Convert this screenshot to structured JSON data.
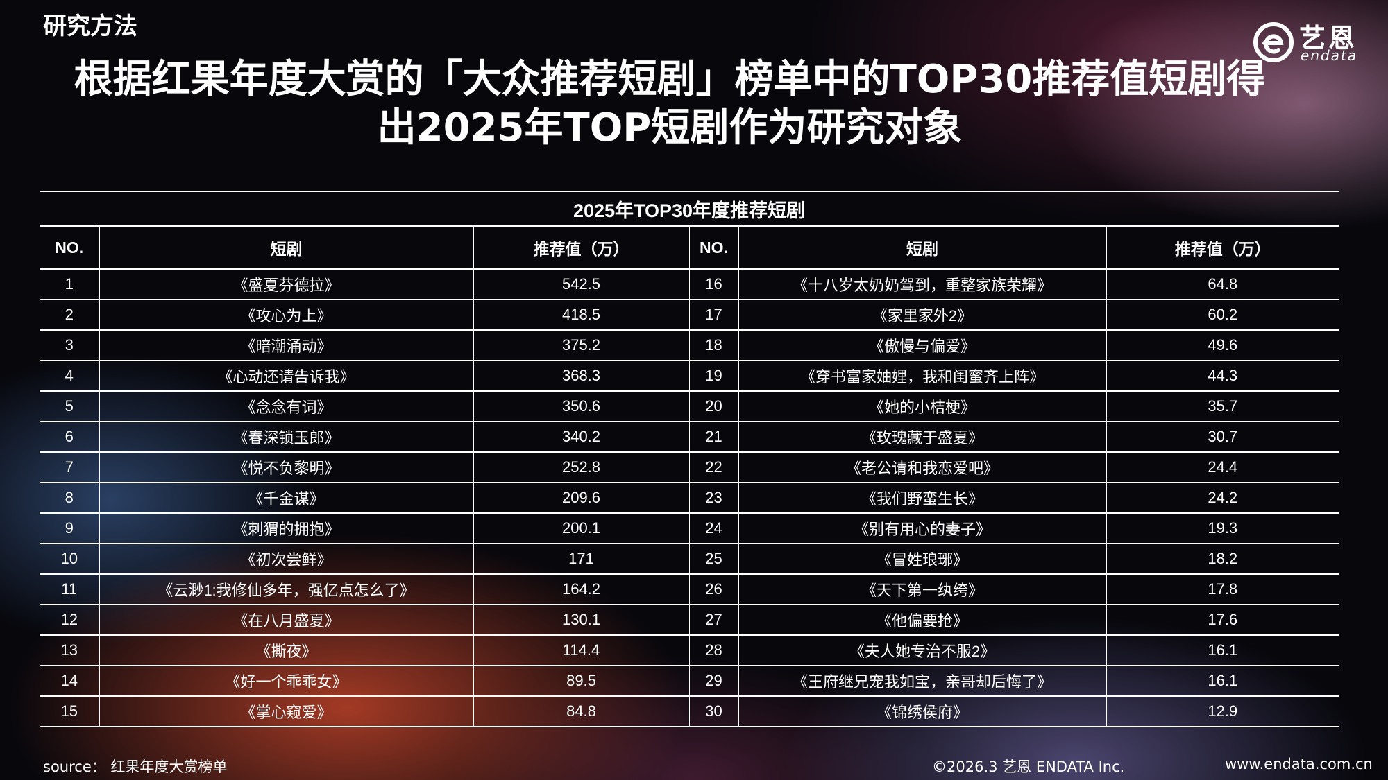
{
  "section_label": "研究方法",
  "logo": {
    "cn": "艺恩",
    "en": "endata"
  },
  "title_lines": [
    "根据红果年度大赏的「大众推荐短剧」榜单中的TOP30推荐值短剧得",
    "出2025年TOP短剧作为研究对象"
  ],
  "table": {
    "caption": "2025年TOP30年度推荐短剧",
    "headers": {
      "no": "NO.",
      "drama": "短剧",
      "value": "推荐值（万）"
    },
    "rows": [
      {
        "left": {
          "no": "1",
          "name": "《盛夏芬德拉》",
          "value": "542.5"
        },
        "right": {
          "no": "16",
          "name": "《十八岁太奶奶驾到，重整家族荣耀》",
          "value": "64.8"
        }
      },
      {
        "left": {
          "no": "2",
          "name": "《攻心为上》",
          "value": "418.5"
        },
        "right": {
          "no": "17",
          "name": "《家里家外2》",
          "value": "60.2"
        }
      },
      {
        "left": {
          "no": "3",
          "name": "《暗潮涌动》",
          "value": "375.2"
        },
        "right": {
          "no": "18",
          "name": "《傲慢与偏爱》",
          "value": "49.6"
        }
      },
      {
        "left": {
          "no": "4",
          "name": "《心动还请告诉我》",
          "value": "368.3"
        },
        "right": {
          "no": "19",
          "name": "《穿书富家妯娌，我和闺蜜齐上阵》",
          "value": "44.3"
        }
      },
      {
        "left": {
          "no": "5",
          "name": "《念念有词》",
          "value": "350.6"
        },
        "right": {
          "no": "20",
          "name": "《她的小桔梗》",
          "value": "35.7"
        }
      },
      {
        "left": {
          "no": "6",
          "name": "《春深锁玉郎》",
          "value": "340.2"
        },
        "right": {
          "no": "21",
          "name": "《玫瑰藏于盛夏》",
          "value": "30.7"
        }
      },
      {
        "left": {
          "no": "7",
          "name": "《悦不负黎明》",
          "value": "252.8"
        },
        "right": {
          "no": "22",
          "name": "《老公请和我恋爱吧》",
          "value": "24.4"
        }
      },
      {
        "left": {
          "no": "8",
          "name": "《千金谋》",
          "value": "209.6"
        },
        "right": {
          "no": "23",
          "name": "《我们野蛮生长》",
          "value": "24.2"
        }
      },
      {
        "left": {
          "no": "9",
          "name": "《刺猬的拥抱》",
          "value": "200.1"
        },
        "right": {
          "no": "24",
          "name": "《别有用心的妻子》",
          "value": "19.3"
        }
      },
      {
        "left": {
          "no": "10",
          "name": "《初次尝鲜》",
          "value": "171"
        },
        "right": {
          "no": "25",
          "name": "《冒姓琅琊》",
          "value": "18.2"
        }
      },
      {
        "left": {
          "no": "11",
          "name": "《云渺1:我修仙多年，强亿点怎么了》",
          "value": "164.2"
        },
        "right": {
          "no": "26",
          "name": "《天下第一纨绔》",
          "value": "17.8"
        }
      },
      {
        "left": {
          "no": "12",
          "name": "《在八月盛夏》",
          "value": "130.1"
        },
        "right": {
          "no": "27",
          "name": "《他偏要抢》",
          "value": "17.6"
        }
      },
      {
        "left": {
          "no": "13",
          "name": "《撕夜》",
          "value": "114.4"
        },
        "right": {
          "no": "28",
          "name": "《夫人她专治不服2》",
          "value": "16.1"
        }
      },
      {
        "left": {
          "no": "14",
          "name": "《好一个乖乖女》",
          "value": "89.5"
        },
        "right": {
          "no": "29",
          "name": "《王府继兄宠我如宝，亲哥却后悔了》",
          "value": "16.1"
        }
      },
      {
        "left": {
          "no": "15",
          "name": "《掌心窥爱》",
          "value": "84.8"
        },
        "right": {
          "no": "30",
          "name": "《锦绣侯府》",
          "value": "12.9"
        }
      }
    ]
  },
  "footer": {
    "source": "source： 红果年度大赏榜单",
    "copyright": "©2026.3  艺恩 ENDATA Inc.",
    "website": "www.endata.com.cn"
  },
  "colors": {
    "background": "#07070c",
    "text": "#ffffff",
    "accent_warm": "#d74b2d",
    "accent_cool": "#466eaa"
  }
}
